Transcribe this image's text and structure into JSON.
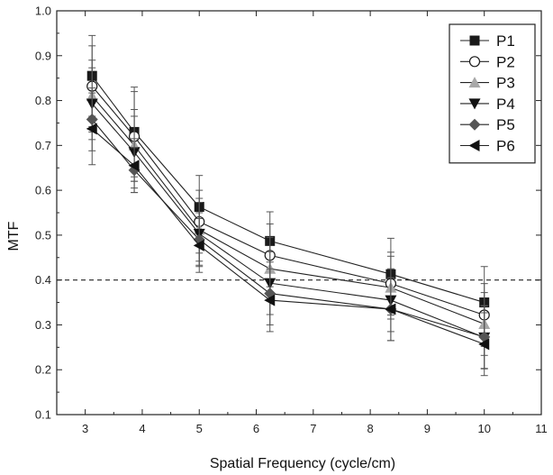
{
  "chart_data": {
    "type": "line",
    "title": "",
    "xlabel": "Spatial Frequency (cycle/cm)",
    "ylabel": "MTF",
    "xlim": [
      2.5,
      11
    ],
    "ylim": [
      0.1,
      1.0
    ],
    "x_ticks": [
      "3",
      "4",
      "5",
      "6",
      "7",
      "8",
      "9",
      "10",
      "11"
    ],
    "y_ticks": [
      "0.1",
      "0.2",
      "0.3",
      "0.4",
      "0.5",
      "0.6",
      "0.7",
      "0.8",
      "0.9",
      "1.0"
    ],
    "reference_line": {
      "y": 0.4,
      "style": "dashed"
    },
    "legend_position": "top-right",
    "grid": false,
    "x": [
      3.12,
      3.86,
      5.0,
      6.24,
      8.36,
      10.0
    ],
    "series": [
      {
        "name": "P1",
        "marker": "square-filled",
        "color": "#1a1a1a",
        "values": [
          0.855,
          0.73,
          0.563,
          0.487,
          0.413,
          0.35
        ],
        "err": [
          0.09,
          0.1,
          0.07,
          0.065,
          0.08,
          0.08
        ]
      },
      {
        "name": "P2",
        "marker": "circle-open",
        "color": "#1a1a1a",
        "values": [
          0.832,
          0.72,
          0.53,
          0.455,
          0.392,
          0.322
        ],
        "err": [
          0.09,
          0.1,
          0.07,
          0.07,
          0.07,
          0.07
        ]
      },
      {
        "name": "P3",
        "marker": "triangle-up",
        "color": "#a8a8a8",
        "values": [
          0.81,
          0.7,
          0.512,
          0.425,
          0.383,
          0.302
        ],
        "err": [
          0.08,
          0.08,
          0.07,
          0.07,
          0.07,
          0.07
        ]
      },
      {
        "name": "P4",
        "marker": "triangle-down",
        "color": "#111111",
        "values": [
          0.793,
          0.685,
          0.503,
          0.393,
          0.355,
          0.272
        ],
        "err": [
          0.08,
          0.08,
          0.07,
          0.07,
          0.07,
          0.07
        ]
      },
      {
        "name": "P5",
        "marker": "diamond",
        "color": "#555555",
        "values": [
          0.758,
          0.645,
          0.49,
          0.37,
          0.335,
          0.273
        ],
        "err": [
          0.07,
          0.05,
          0.06,
          0.07,
          0.07,
          0.07
        ]
      },
      {
        "name": "P6",
        "marker": "triangle-left",
        "color": "#111111",
        "values": [
          0.737,
          0.655,
          0.477,
          0.355,
          0.335,
          0.257
        ],
        "err": [
          0.08,
          0.06,
          0.06,
          0.07,
          0.07,
          0.07
        ]
      }
    ]
  }
}
